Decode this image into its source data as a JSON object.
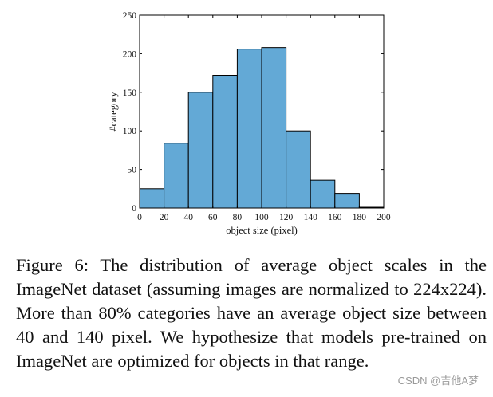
{
  "chart_data": {
    "type": "bar",
    "bin_edges": [
      0,
      20,
      40,
      60,
      80,
      100,
      120,
      140,
      160,
      180,
      200
    ],
    "values": [
      25,
      84,
      150,
      172,
      206,
      208,
      100,
      36,
      19,
      1
    ],
    "xlabel": "object size (pixel)",
    "ylabel": "#category",
    "xlim": [
      0,
      200
    ],
    "ylim": [
      0,
      250
    ],
    "xticks": [
      "0",
      "20",
      "40",
      "60",
      "80",
      "100",
      "120",
      "140",
      "160",
      "180",
      "200"
    ],
    "yticks": [
      "0",
      "50",
      "100",
      "150",
      "200",
      "250"
    ],
    "bar_color": "#63a9d6",
    "grid": false,
    "legend": "none"
  },
  "caption": {
    "text": "Figure 6:  The distribution of average object scales in the ImageNet dataset (assuming images are normalized to 224x224). More than 80% categories have an average object size between 40 and 140 pixel.  We hypothesize that models pre-trained on ImageNet are optimized for objects in that range."
  },
  "watermark": "CSDN @吉他A梦"
}
